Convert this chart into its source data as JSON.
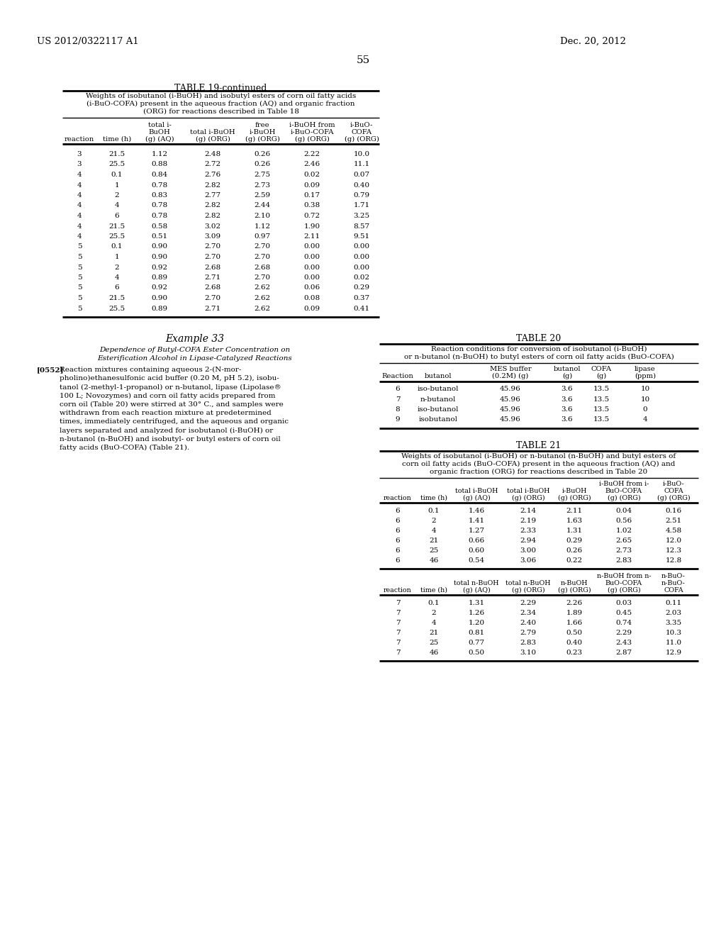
{
  "header_left": "US 2012/0322117 A1",
  "header_right": "Dec. 20, 2012",
  "page_number": "55",
  "table19_title": "TABLE 19-continued",
  "table19_caption_lines": [
    "Weights of isobutanol (i-BuOH) and isobutyl esters of corn oil fatty acids",
    "(i-BuO-COFA) present in the aqueous fraction (AQ) and organic fraction",
    "(ORG) for reactions described in Table 18"
  ],
  "table19_data": [
    [
      "3",
      "21.5",
      "1.12",
      "2.48",
      "0.26",
      "2.22",
      "10.0"
    ],
    [
      "3",
      "25.5",
      "0.88",
      "2.72",
      "0.26",
      "2.46",
      "11.1"
    ],
    [
      "4",
      "0.1",
      "0.84",
      "2.76",
      "2.75",
      "0.02",
      "0.07"
    ],
    [
      "4",
      "1",
      "0.78",
      "2.82",
      "2.73",
      "0.09",
      "0.40"
    ],
    [
      "4",
      "2",
      "0.83",
      "2.77",
      "2.59",
      "0.17",
      "0.79"
    ],
    [
      "4",
      "4",
      "0.78",
      "2.82",
      "2.44",
      "0.38",
      "1.71"
    ],
    [
      "4",
      "6",
      "0.78",
      "2.82",
      "2.10",
      "0.72",
      "3.25"
    ],
    [
      "4",
      "21.5",
      "0.58",
      "3.02",
      "1.12",
      "1.90",
      "8.57"
    ],
    [
      "4",
      "25.5",
      "0.51",
      "3.09",
      "0.97",
      "2.11",
      "9.51"
    ],
    [
      "5",
      "0.1",
      "0.90",
      "2.70",
      "2.70",
      "0.00",
      "0.00"
    ],
    [
      "5",
      "1",
      "0.90",
      "2.70",
      "2.70",
      "0.00",
      "0.00"
    ],
    [
      "5",
      "2",
      "0.92",
      "2.68",
      "2.68",
      "0.00",
      "0.00"
    ],
    [
      "5",
      "4",
      "0.89",
      "2.71",
      "2.70",
      "0.00",
      "0.02"
    ],
    [
      "5",
      "6",
      "0.92",
      "2.68",
      "2.62",
      "0.06",
      "0.29"
    ],
    [
      "5",
      "21.5",
      "0.90",
      "2.70",
      "2.62",
      "0.08",
      "0.37"
    ],
    [
      "5",
      "25.5",
      "0.89",
      "2.71",
      "2.62",
      "0.09",
      "0.41"
    ]
  ],
  "example33_title": "Example 33",
  "example33_subtitle_lines": [
    "Dependence of Butyl-COFA Ester Concentration on",
    "Esterification Alcohol in Lipase-Catalyzed Reactions"
  ],
  "example33_para_label": "[0552]",
  "example33_para_lines": [
    "Reaction mixtures containing aqueous 2-(N-mor-",
    "pholino)ethanesulfonic acid buffer (0.20 M, pH 5.2), isobu-",
    "tanol (2-methyl-1-propanol) or n-butanol, lipase (Lipolase®",
    "100 L; Novozymes) and corn oil fatty acids prepared from",
    "corn oil (Table 20) were stirred at 30° C., and samples were",
    "withdrawn from each reaction mixture at predetermined",
    "times, immediately centrifuged, and the aqueous and organic",
    "layers separated and analyzed for isobutanol (i-BuOH) or",
    "n-butanol (n-BuOH) and isobutyl- or butyl esters of corn oil",
    "fatty acids (BuO-COFA) (Table 21)."
  ],
  "table20_title": "TABLE 20",
  "table20_caption_lines": [
    "Reaction conditions for conversion of isobutanol (i-BuOH)",
    "or n-butanol (n-BuOH) to butyl esters of corn oil fatty acids (BuO-COFA)"
  ],
  "table20_data": [
    [
      "6",
      "iso-butanol",
      "45.96",
      "3.6",
      "13.5",
      "10"
    ],
    [
      "7",
      "n-butanol",
      "45.96",
      "3.6",
      "13.5",
      "10"
    ],
    [
      "8",
      "iso-butanol",
      "45.96",
      "3.6",
      "13.5",
      "0"
    ],
    [
      "9",
      "isobutanol",
      "45.96",
      "3.6",
      "13.5",
      "4"
    ]
  ],
  "table21_title": "TABLE 21",
  "table21_caption_lines": [
    "Weights of isobutanol (i-BuOH) or n-butanol (n-BuOH) and butyl esters of",
    "corn oil fatty acids (BuO-COFA) present in the aqueous fraction (AQ) and",
    "organic fraction (ORG) for reactions described in Table 20"
  ],
  "table21_data_top": [
    [
      "6",
      "0.1",
      "1.46",
      "2.14",
      "2.11",
      "0.04",
      "0.16"
    ],
    [
      "6",
      "2",
      "1.41",
      "2.19",
      "1.63",
      "0.56",
      "2.51"
    ],
    [
      "6",
      "4",
      "1.27",
      "2.33",
      "1.31",
      "1.02",
      "4.58"
    ],
    [
      "6",
      "21",
      "0.66",
      "2.94",
      "0.29",
      "2.65",
      "12.0"
    ],
    [
      "6",
      "25",
      "0.60",
      "3.00",
      "0.26",
      "2.73",
      "12.3"
    ],
    [
      "6",
      "46",
      "0.54",
      "3.06",
      "0.22",
      "2.83",
      "12.8"
    ]
  ],
  "table21_data_bot": [
    [
      "7",
      "0.1",
      "1.31",
      "2.29",
      "2.26",
      "0.03",
      "0.11"
    ],
    [
      "7",
      "2",
      "1.26",
      "2.34",
      "1.89",
      "0.45",
      "2.03"
    ],
    [
      "7",
      "4",
      "1.20",
      "2.40",
      "1.66",
      "0.74",
      "3.35"
    ],
    [
      "7",
      "21",
      "0.81",
      "2.79",
      "0.50",
      "2.29",
      "10.3"
    ],
    [
      "7",
      "25",
      "0.77",
      "2.83",
      "0.40",
      "2.43",
      "11.0"
    ],
    [
      "7",
      "46",
      "0.50",
      "3.10",
      "0.23",
      "2.87",
      "12.9"
    ]
  ]
}
